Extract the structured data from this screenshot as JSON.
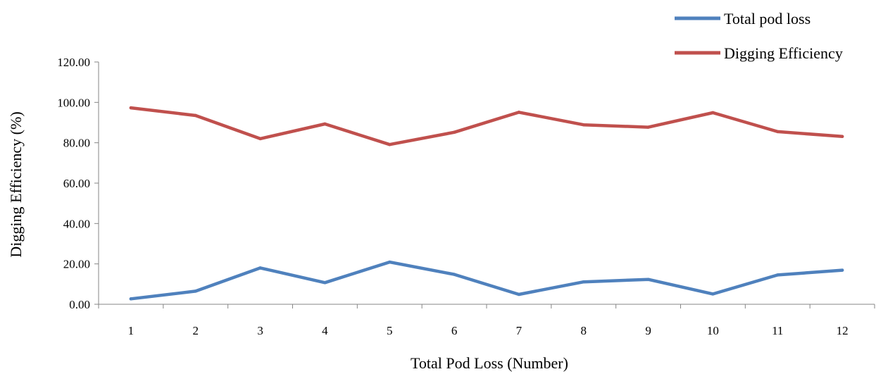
{
  "chart_data": {
    "type": "line",
    "x": [
      "1",
      "2",
      "3",
      "4",
      "5",
      "6",
      "7",
      "8",
      "9",
      "10",
      "11",
      "12"
    ],
    "series": [
      {
        "name": "Total pod loss",
        "color": "#4f81bd",
        "values": [
          2.7,
          6.5,
          18.0,
          10.7,
          20.9,
          14.8,
          4.9,
          11.1,
          12.3,
          5.1,
          14.5,
          16.9
        ]
      },
      {
        "name": "Digging Efficiency",
        "color": "#c0504d",
        "values": [
          97.3,
          93.5,
          82.0,
          89.3,
          79.1,
          85.2,
          95.1,
          88.9,
          87.7,
          94.9,
          85.5,
          83.1
        ]
      }
    ],
    "xlabel": "Total Pod Loss (Number)",
    "ylabel": "Digging Efficiency  (%)",
    "ylim": [
      0,
      120
    ],
    "yticks": [
      "0.00",
      "20.00",
      "40.00",
      "60.00",
      "80.00",
      "100.00",
      "120.00"
    ],
    "ytick_values": [
      0,
      20,
      40,
      60,
      80,
      100,
      120
    ],
    "grid": false,
    "legend_position": "top-right"
  }
}
